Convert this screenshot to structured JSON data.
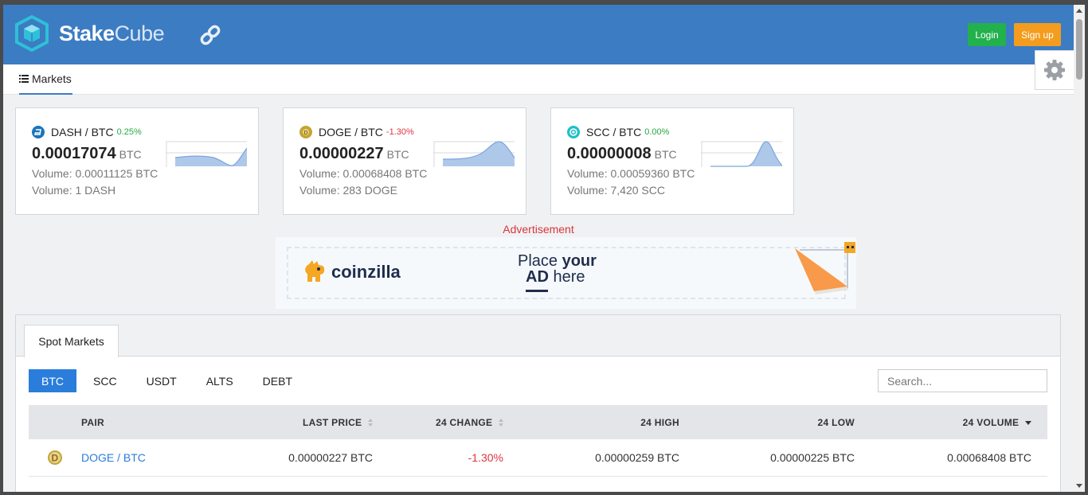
{
  "header": {
    "brand_bold": "Stake",
    "brand_light": "Cube",
    "login_label": "Login",
    "signup_label": "Sign up"
  },
  "nav": {
    "markets_label": "Markets"
  },
  "tickers": [
    {
      "pair": "DASH / BTC",
      "change": "0.25%",
      "price": "0.00017074",
      "unit": "BTC",
      "volume_btc": "Volume: 0.00011125 BTC",
      "volume_coin": "Volume: 1 DASH",
      "coin_color": "#1c75bc",
      "trend": "positive"
    },
    {
      "pair": "DOGE / BTC",
      "change": "-1.30%",
      "price": "0.00000227",
      "unit": "BTC",
      "volume_btc": "Volume: 0.00068408 BTC",
      "volume_coin": "Volume: 283 DOGE",
      "coin_color": "#c2a633",
      "trend": "negative"
    },
    {
      "pair": "SCC / BTC",
      "change": "0.00%",
      "price": "0.00000008",
      "unit": "BTC",
      "volume_btc": "Volume: 0.00059360 BTC",
      "volume_coin": "Volume: 7,420 SCC",
      "coin_color": "#1fc0c9",
      "trend": "positive"
    }
  ],
  "ad": {
    "label": "Advertisement",
    "brand": "coinzilla",
    "line1_normal": "Place ",
    "line1_bold": "your",
    "line2_bold": "AD",
    "line2_normal": " here"
  },
  "spot": {
    "tab_label": "Spot Markets",
    "filters": [
      "BTC",
      "SCC",
      "USDT",
      "ALTS",
      "DEBT"
    ],
    "active_filter": "BTC",
    "search_placeholder": "Search...",
    "columns": {
      "pair": "PAIR",
      "last_price": "LAST PRICE",
      "change": "24 CHANGE",
      "high": "24 HIGH",
      "low": "24 LOW",
      "volume": "24 VOLUME"
    },
    "rows": [
      {
        "pair": "DOGE / BTC",
        "last_price": "0.00000227 BTC",
        "change": "-1.30%",
        "high": "0.00000259 BTC",
        "low": "0.00000225 BTC",
        "volume": "0.00068408 BTC",
        "coin_color": "#c2a633"
      }
    ]
  },
  "colors": {
    "header_bg": "#3b7cc3",
    "login_bg": "#22b14c",
    "signup_bg": "#f39c1e",
    "accent": "#2a7ddb",
    "positive": "#2aa843",
    "negative": "#d9363e"
  }
}
